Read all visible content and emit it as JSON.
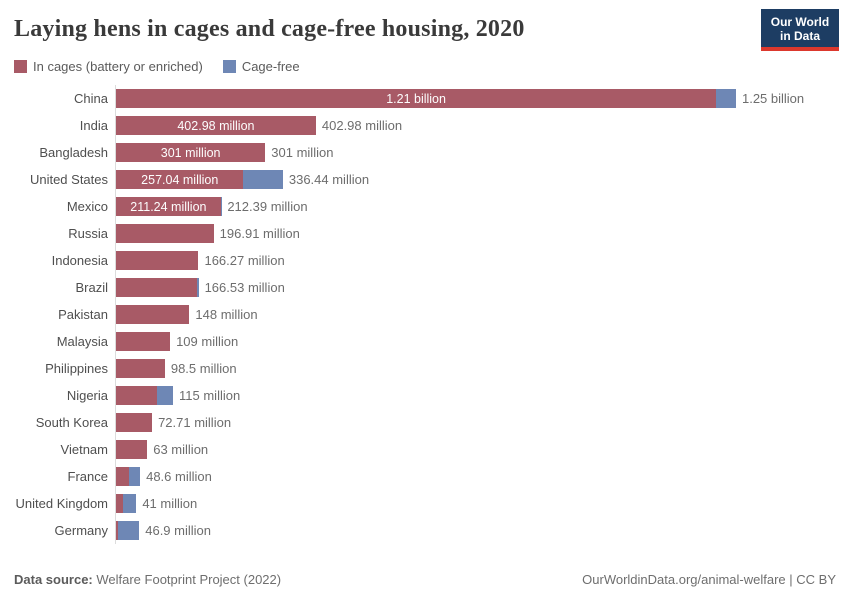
{
  "title": "Laying hens in cages and cage-free housing, 2020",
  "logo": {
    "line1": "Our World",
    "line2": "in Data",
    "bg_color": "#1d3d63",
    "stripe_color": "#dc382d"
  },
  "legend": [
    {
      "label": "In cages (battery or enriched)",
      "color": "#a85a66"
    },
    {
      "label": "Cage-free",
      "color": "#6e87b5"
    }
  ],
  "footer": {
    "source_label": "Data source:",
    "source_text": " Welfare Footprint Project (2022)",
    "right_text": "OurWorldinData.org/animal-welfare | CC BY"
  },
  "chart_data": {
    "type": "bar",
    "orientation": "horizontal",
    "stacked": true,
    "value_unit": "million laying hens",
    "xlim": [
      0,
      1250
    ],
    "grid": false,
    "legend_position": "top-left",
    "categories": [
      "China",
      "India",
      "Bangladesh",
      "United States",
      "Mexico",
      "Russia",
      "Indonesia",
      "Brazil",
      "Pakistan",
      "Malaysia",
      "Philippines",
      "Nigeria",
      "South Korea",
      "Vietnam",
      "France",
      "United Kingdom",
      "Germany"
    ],
    "series": [
      {
        "name": "In cages (battery or enriched)",
        "color": "#a85a66",
        "values": [
          1210,
          402.98,
          301,
          257.04,
          211.24,
          196.91,
          166.27,
          162.5,
          148,
          109,
          98.5,
          83,
          72.71,
          63,
          26,
          15,
          4.5
        ]
      },
      {
        "name": "Cage-free",
        "color": "#6e87b5",
        "values": [
          40,
          0,
          0,
          79.4,
          1.15,
          0,
          0,
          4.03,
          0,
          0,
          0,
          32,
          0,
          0,
          22.6,
          26,
          42.4
        ]
      }
    ],
    "bar_labels_inside": [
      "1.21 billion",
      "402.98 million",
      "301 million",
      "257.04 million",
      "211.24 million",
      "",
      "",
      "",
      "",
      "",
      "",
      "",
      "",
      "",
      "",
      "",
      ""
    ],
    "total_labels": [
      "1.25 billion",
      "402.98 million",
      "301 million",
      "336.44 million",
      "212.39 million",
      "196.91 million",
      "166.27 million",
      "166.53 million",
      "148 million",
      "109 million",
      "98.5 million",
      "115 million",
      "72.71 million",
      "63 million",
      "48.6 million",
      "41 million",
      "46.9 million"
    ]
  }
}
